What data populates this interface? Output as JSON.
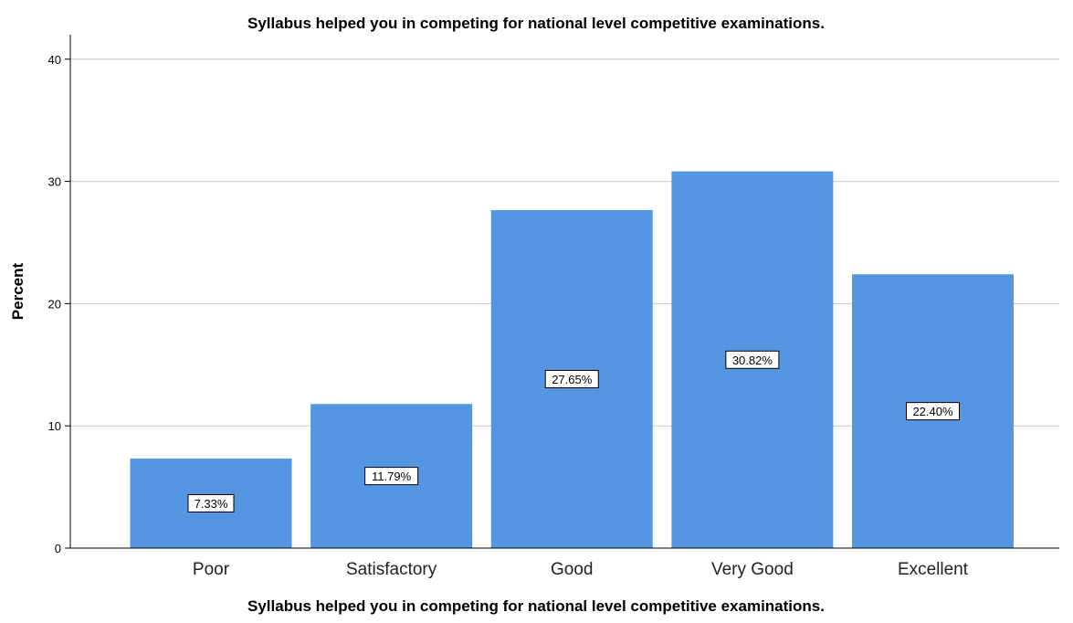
{
  "chart_data": {
    "type": "bar",
    "title": "Syllabus helped you in competing for national level competitive examinations.",
    "xlabel": "Syllabus helped you in competing for national level competitive examinations.",
    "ylabel": "Percent",
    "categories": [
      "Poor",
      "Satisfactory",
      "Good",
      "Very Good",
      "Excellent"
    ],
    "values": [
      7.33,
      11.79,
      27.65,
      30.82,
      22.4
    ],
    "data_labels": [
      "7.33%",
      "11.79%",
      "27.65%",
      "30.82%",
      "22.40%"
    ],
    "yticks": [
      0,
      10,
      20,
      30,
      40
    ],
    "ylim": [
      0,
      42
    ],
    "grid": true,
    "bar_color": "#5596e3"
  }
}
